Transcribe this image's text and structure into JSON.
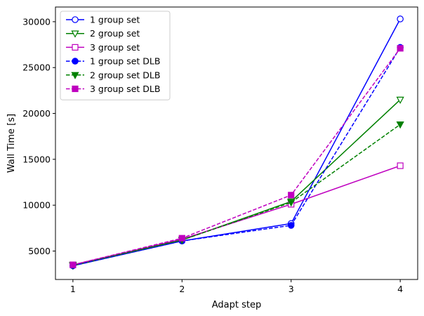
{
  "chart_data": {
    "type": "line",
    "title": "",
    "xlabel": "Adapt step",
    "ylabel": "Wall Time [s]",
    "x": [
      1,
      2,
      3,
      4
    ],
    "xticks": [
      "1",
      "2",
      "3",
      "4"
    ],
    "xlim": [
      0.84,
      4.16
    ],
    "yticks": [
      "5000",
      "10000",
      "15000",
      "20000",
      "25000",
      "30000"
    ],
    "ylim": [
      1900,
      31600
    ],
    "grid": false,
    "legend_position": "top-left",
    "series": [
      {
        "name": "1 group set",
        "color": "#0000ff",
        "dash": "solid",
        "marker": "circle",
        "filled": false,
        "values": [
          3400,
          6100,
          8000,
          30300
        ]
      },
      {
        "name": "2 group set",
        "color": "#008000",
        "dash": "solid",
        "marker": "triangle-down",
        "filled": false,
        "values": [
          3400,
          6200,
          10400,
          21500
        ]
      },
      {
        "name": "3 group set",
        "color": "#bf00bf",
        "dash": "solid",
        "marker": "square",
        "filled": false,
        "values": [
          3500,
          6300,
          10100,
          14300
        ]
      },
      {
        "name": "1 group set DLB",
        "color": "#0000ff",
        "dash": "dashed",
        "marker": "circle",
        "filled": true,
        "values": [
          3400,
          6100,
          7800,
          27200
        ]
      },
      {
        "name": "2 group set DLB",
        "color": "#008000",
        "dash": "dashed",
        "marker": "triangle-down",
        "filled": true,
        "values": [
          3500,
          6200,
          10300,
          18800
        ]
      },
      {
        "name": "3 group set DLB",
        "color": "#bf00bf",
        "dash": "dashed",
        "marker": "square",
        "filled": true,
        "values": [
          3500,
          6400,
          11100,
          27100
        ]
      }
    ]
  }
}
